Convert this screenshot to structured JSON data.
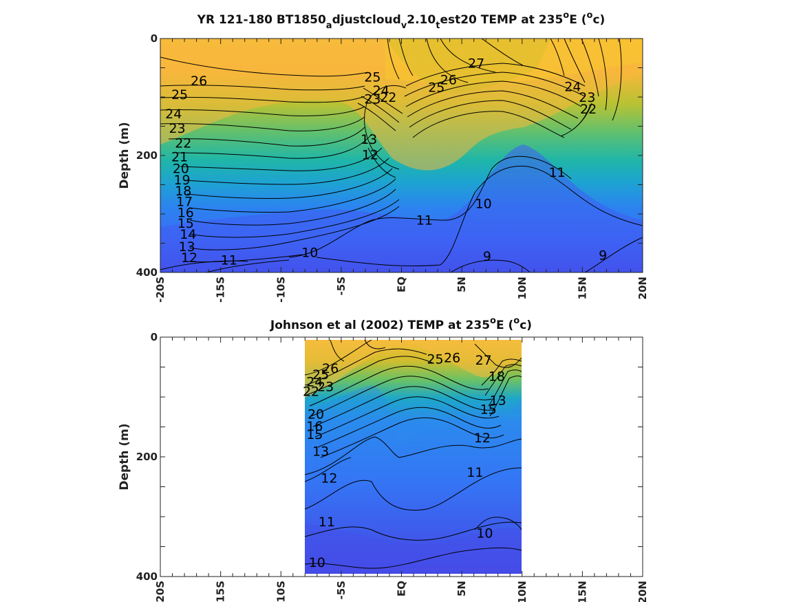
{
  "chart_data": [
    {
      "type": "heatmap",
      "title_parts": [
        "YR 121-180 BT1850",
        "a",
        "djustcloud",
        "v",
        "2.10",
        "t",
        "est20 TEMP at 235",
        "o",
        "E (",
        "o",
        "c)"
      ],
      "ylabel": "Depth (m)",
      "x_ticks": [
        "-20S",
        "-15S",
        "-10S",
        "-5S",
        "EQ",
        "5N",
        "10N",
        "15N",
        "20N"
      ],
      "y_ticks": [
        "0",
        "200",
        "400"
      ],
      "xlim": [
        -20,
        20
      ],
      "ylim": [
        0,
        400
      ],
      "y_reversed": true,
      "data_xlim": [
        -20,
        20
      ],
      "colorscale": "parula",
      "contour_labels": [
        {
          "text": "26",
          "x": -16.8,
          "y": 72
        },
        {
          "text": "25",
          "x": -18.4,
          "y": 95
        },
        {
          "text": "24",
          "x": -18.9,
          "y": 128
        },
        {
          "text": "23",
          "x": -18.6,
          "y": 153
        },
        {
          "text": "22",
          "x": -18.1,
          "y": 178
        },
        {
          "text": "21",
          "x": -18.4,
          "y": 202
        },
        {
          "text": "20",
          "x": -18.3,
          "y": 222
        },
        {
          "text": "19",
          "x": -18.2,
          "y": 241
        },
        {
          "text": "18",
          "x": -18.1,
          "y": 260
        },
        {
          "text": "17",
          "x": -18.0,
          "y": 278
        },
        {
          "text": "16",
          "x": -17.9,
          "y": 297
        },
        {
          "text": "15",
          "x": -17.9,
          "y": 315
        },
        {
          "text": "14",
          "x": -17.7,
          "y": 334
        },
        {
          "text": "13",
          "x": -17.8,
          "y": 355
        },
        {
          "text": "12",
          "x": -17.6,
          "y": 374
        },
        {
          "text": "11",
          "x": -14.3,
          "y": 378
        },
        {
          "text": "10",
          "x": -7.6,
          "y": 365
        },
        {
          "text": "25",
          "x": -2.4,
          "y": 65
        },
        {
          "text": "24",
          "x": -1.7,
          "y": 88
        },
        {
          "text": "23",
          "x": -2.4,
          "y": 103
        },
        {
          "text": "22",
          "x": -1.1,
          "y": 100
        },
        {
          "text": "13",
          "x": -2.7,
          "y": 172
        },
        {
          "text": "12",
          "x": -2.6,
          "y": 198
        },
        {
          "text": "26",
          "x": 3.9,
          "y": 70
        },
        {
          "text": "25",
          "x": 2.9,
          "y": 83
        },
        {
          "text": "27",
          "x": 6.2,
          "y": 42
        },
        {
          "text": "11",
          "x": 1.9,
          "y": 310
        },
        {
          "text": "10",
          "x": 6.8,
          "y": 282
        },
        {
          "text": "9",
          "x": 7.1,
          "y": 372
        },
        {
          "text": "24",
          "x": 14.2,
          "y": 82
        },
        {
          "text": "23",
          "x": 15.4,
          "y": 100
        },
        {
          "text": "22",
          "x": 15.5,
          "y": 120
        },
        {
          "text": "11",
          "x": 12.9,
          "y": 228
        },
        {
          "text": "9",
          "x": 16.7,
          "y": 370
        }
      ]
    },
    {
      "type": "heatmap",
      "title_parts": [
        "Johnson et al (2002) TEMP at 235",
        "o",
        "E (",
        "o",
        "c)"
      ],
      "ylabel": "Depth (m)",
      "x_ticks": [
        "-20S",
        "-15S",
        "-10S",
        "-5S",
        "EQ",
        "5N",
        "10N",
        "15N",
        "20N"
      ],
      "y_ticks": [
        "0",
        "200",
        "400"
      ],
      "xlim": [
        -20,
        20
      ],
      "ylim": [
        0,
        400
      ],
      "y_reversed": true,
      "data_xlim": [
        -8,
        10
      ],
      "colorscale": "parula",
      "contour_labels": [
        {
          "text": "26",
          "x": -5.9,
          "y": 52
        },
        {
          "text": "25",
          "x": -6.7,
          "y": 62
        },
        {
          "text": "24",
          "x": -7.2,
          "y": 74
        },
        {
          "text": "23",
          "x": -6.3,
          "y": 82
        },
        {
          "text": "22",
          "x": -7.5,
          "y": 90
        },
        {
          "text": "20",
          "x": -7.1,
          "y": 128
        },
        {
          "text": "16",
          "x": -7.2,
          "y": 148
        },
        {
          "text": "15",
          "x": -7.2,
          "y": 162
        },
        {
          "text": "13",
          "x": -6.7,
          "y": 190
        },
        {
          "text": "12",
          "x": -6.0,
          "y": 235
        },
        {
          "text": "11",
          "x": -6.2,
          "y": 308
        },
        {
          "text": "10",
          "x": -7.0,
          "y": 376
        },
        {
          "text": "25",
          "x": 2.8,
          "y": 36
        },
        {
          "text": "26",
          "x": 4.2,
          "y": 34
        },
        {
          "text": "27",
          "x": 6.8,
          "y": 38
        },
        {
          "text": "18",
          "x": 7.9,
          "y": 65
        },
        {
          "text": "13",
          "x": 8.0,
          "y": 105
        },
        {
          "text": "15",
          "x": 7.2,
          "y": 120
        },
        {
          "text": "12",
          "x": 6.7,
          "y": 168
        },
        {
          "text": "11",
          "x": 6.1,
          "y": 225
        },
        {
          "text": "10",
          "x": 6.9,
          "y": 327
        }
      ]
    }
  ]
}
